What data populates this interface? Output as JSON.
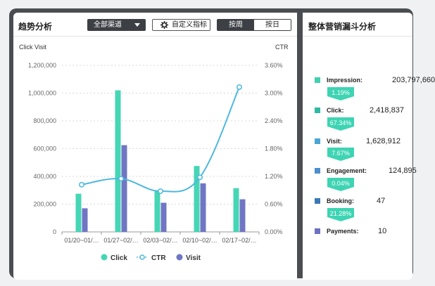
{
  "trend_panel": {
    "title": "趋势分析",
    "channel_select": "全部渠道",
    "custom_metric_button": "自定义指标",
    "segment": {
      "by_week": "按周",
      "by_day": "按日",
      "selected": "by_week"
    },
    "left_axis_title": "Click Visit",
    "right_axis_title": "CTR"
  },
  "chart_data": {
    "type": "bar",
    "categories": [
      "01/20~01/…",
      "01/27~02/…",
      "02/03~02/…",
      "02/10~02/…",
      "02/17~02/…"
    ],
    "y_left_ticks": [
      "0",
      "200,000",
      "400,000",
      "600,000",
      "800,000",
      "1,000,000",
      "1,200,000"
    ],
    "y_right_ticks": [
      "0.00%",
      "0.60%",
      "1.20%",
      "1.80%",
      "2.40%",
      "3.00%",
      "3.60%"
    ],
    "ylim_left": [
      0,
      1200000
    ],
    "ylim_right": [
      0,
      3.6
    ],
    "grid": true,
    "legend_position": "bottom",
    "series": [
      {
        "name": "Click",
        "kind": "bar",
        "color": "#45d6b5",
        "values": [
          275000,
          1020000,
          300000,
          475000,
          315000
        ]
      },
      {
        "name": "Visit",
        "kind": "bar",
        "color": "#7076c4",
        "values": [
          170000,
          625000,
          210000,
          350000,
          235000
        ]
      },
      {
        "name": "CTR",
        "kind": "line",
        "color": "#4db8dd",
        "values": [
          1.02,
          1.15,
          0.88,
          1.18,
          3.13
        ]
      }
    ]
  },
  "funnel_panel": {
    "title": "整体营销漏斗分析",
    "stages": [
      {
        "name": "Impression:",
        "value": "203,797,660",
        "color": "#3fd1b0"
      },
      {
        "name": "Click:",
        "value": "2,418,837",
        "color": "#2fb9a1"
      },
      {
        "name": "Visit:",
        "value": "1,628,912",
        "color": "#4aa6d6"
      },
      {
        "name": "Engagement:",
        "value": "124,895",
        "color": "#4b8fd0"
      },
      {
        "name": "Booking:",
        "value": "47",
        "color": "#3a79b6"
      },
      {
        "name": "Payments:",
        "value": "10",
        "color": "#6b72c2"
      }
    ],
    "rates": [
      "1.19%",
      "67.34%",
      "7.67%",
      "0.04%",
      "21.28%"
    ],
    "rate_color": "#3ed4b3"
  }
}
